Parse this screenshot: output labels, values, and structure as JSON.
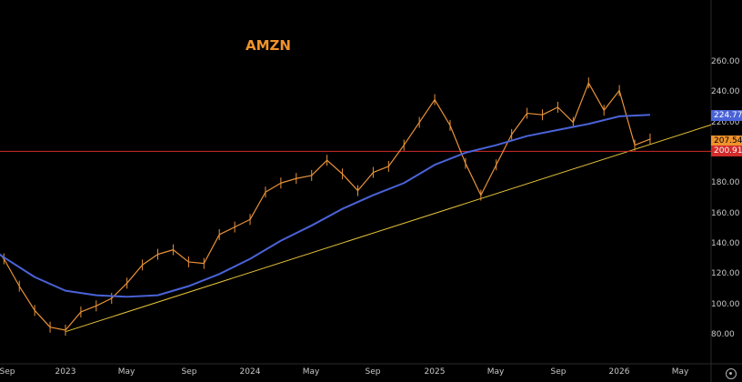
{
  "chart_data": {
    "type": "line",
    "title": "AMZN",
    "x_ticks": [
      "Sep",
      "2023",
      "May",
      "Sep",
      "2024",
      "May",
      "Sep",
      "2025",
      "May",
      "Sep",
      "2026",
      "May"
    ],
    "y_ticks": [
      "80.00",
      "100.00",
      "120.00",
      "140.00",
      "160.00",
      "180.00",
      "200.00",
      "220.00",
      "240.00",
      "260.00"
    ],
    "ylim": [
      70,
      268
    ],
    "grid": false,
    "price_tags": {
      "ma": {
        "label": "224.77",
        "value": 224.77,
        "color": "#4a63d8"
      },
      "last": {
        "label": "207.54",
        "value": 207.54,
        "color": "#f0922b"
      },
      "level": {
        "label": "200.91",
        "value": 200.91,
        "color": "#d42b2b"
      }
    },
    "series": [
      {
        "kind": "price",
        "color": "#e8923a",
        "x": [
          "2022-08",
          "2022-09",
          "2022-10",
          "2022-11",
          "2022-12",
          "2023-01",
          "2023-02",
          "2023-03",
          "2023-04",
          "2023-05",
          "2023-06",
          "2023-07",
          "2023-08",
          "2023-09",
          "2023-10",
          "2023-11",
          "2023-12",
          "2024-01",
          "2024-02",
          "2024-03",
          "2024-04",
          "2024-05",
          "2024-06",
          "2024-07",
          "2024-08",
          "2024-09",
          "2024-10",
          "2024-11",
          "2024-12",
          "2025-01",
          "2025-02",
          "2025-03",
          "2025-04",
          "2025-05",
          "2025-06",
          "2025-07",
          "2025-08",
          "2025-09",
          "2025-10",
          "2025-11",
          "2025-12",
          "2026-01",
          "2026-02",
          "2026-03"
        ],
        "values": [
          142,
          130,
          112,
          96,
          85,
          83,
          95,
          99,
          104,
          114,
          126,
          133,
          136,
          128,
          127,
          146,
          151,
          156,
          174,
          180,
          183,
          185,
          195,
          186,
          175,
          187,
          191,
          205,
          220,
          235,
          218,
          193,
          172,
          192,
          212,
          226,
          225,
          230,
          220,
          246,
          228,
          241,
          205,
          209
        ]
      },
      {
        "kind": "moving-average",
        "color": "#4a63d8",
        "x": [
          "2022-07",
          "2022-09",
          "2022-11",
          "2023-01",
          "2023-03",
          "2023-05",
          "2023-07",
          "2023-09",
          "2023-11",
          "2024-01",
          "2024-03",
          "2024-05",
          "2024-07",
          "2024-09",
          "2024-11",
          "2025-01",
          "2025-03",
          "2025-05",
          "2025-07",
          "2025-09",
          "2025-11",
          "2026-01",
          "2026-03"
        ],
        "values": [
          145,
          131,
          118,
          109,
          106,
          105,
          106,
          112,
          120,
          130,
          142,
          152,
          163,
          172,
          180,
          192,
          200,
          205,
          211,
          215,
          219,
          224,
          225
        ]
      }
    ],
    "horizontal_line": {
      "value": 200.91,
      "color": "#d42b2b"
    },
    "trendline": {
      "from": {
        "x": "2023-01",
        "y": 82
      },
      "to": {
        "x": "2026-05",
        "y": 212
      },
      "color": "#e6c43a"
    }
  }
}
